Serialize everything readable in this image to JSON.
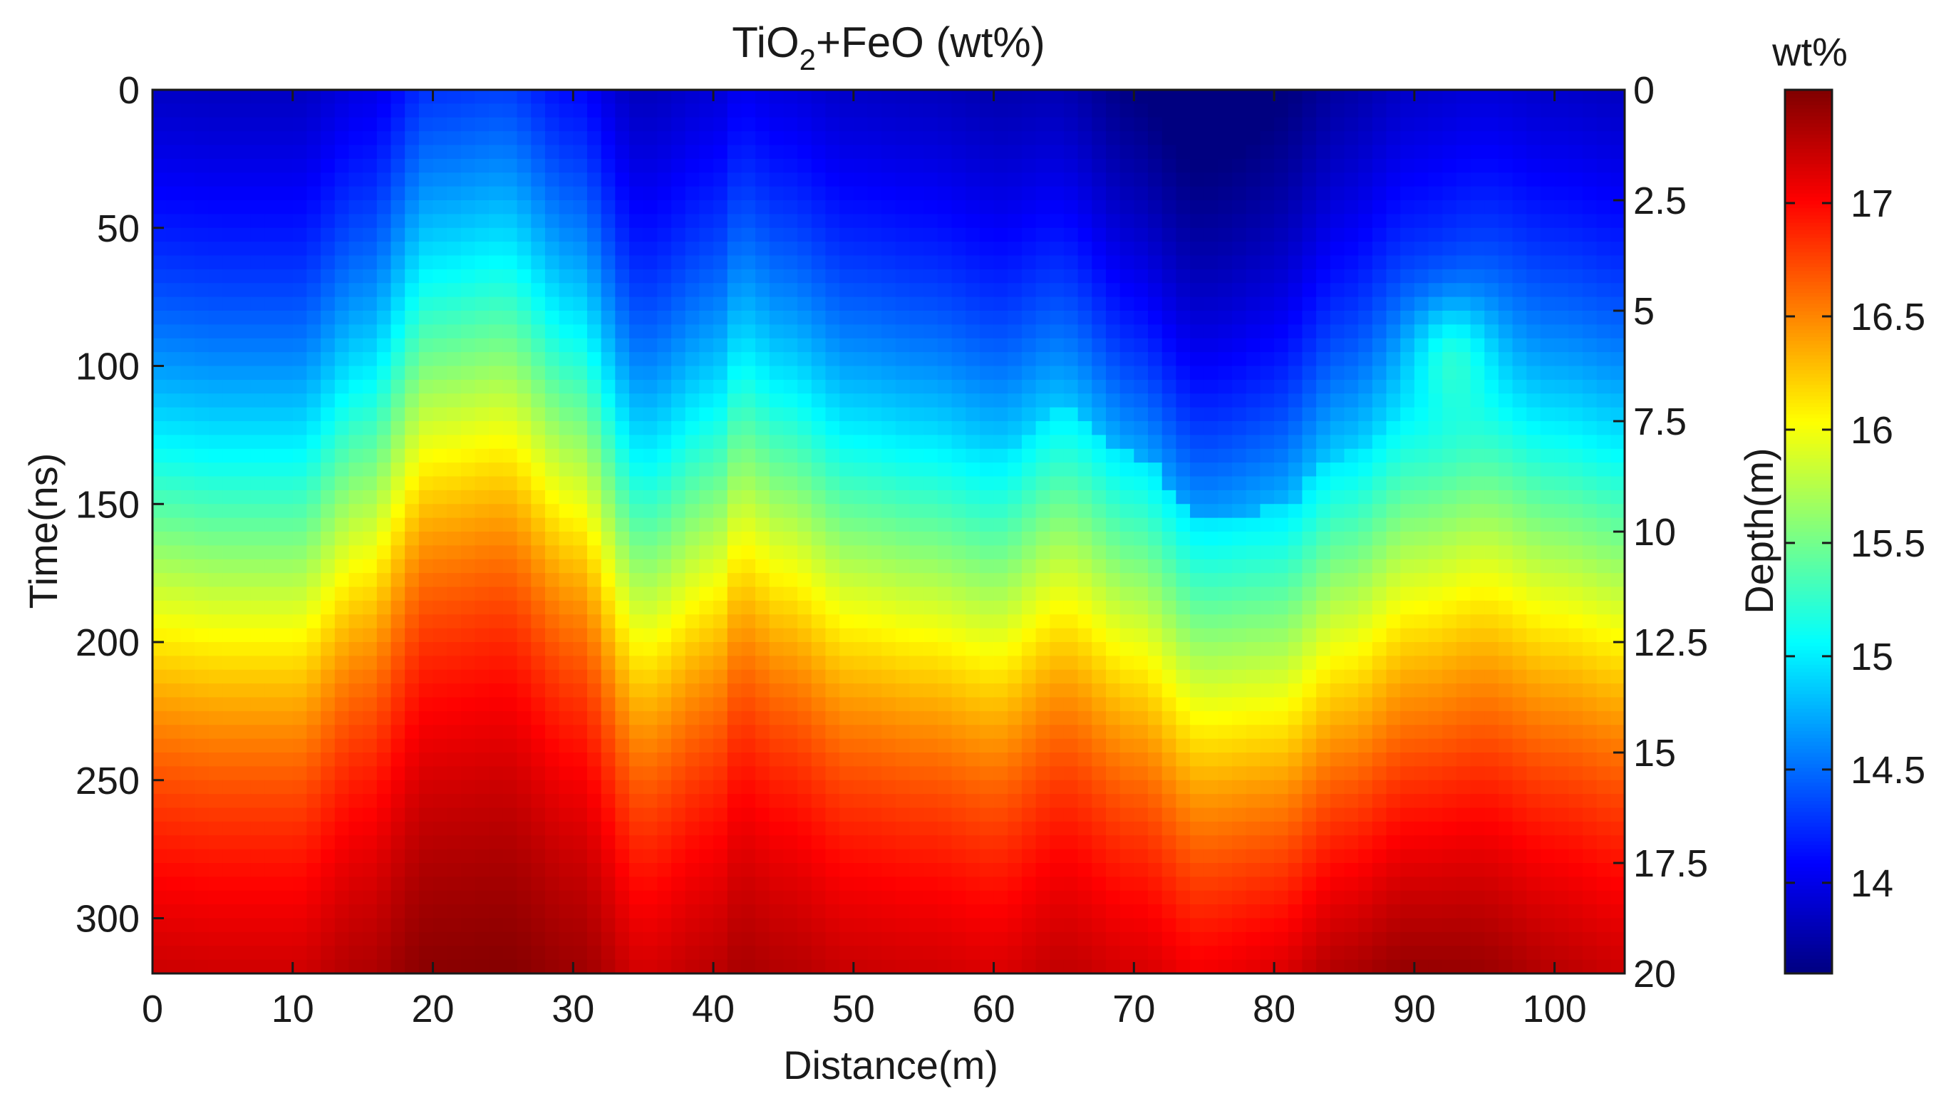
{
  "chart_data": {
    "type": "heatmap",
    "title_main": "TiO",
    "title_sub": "2",
    "title_rest": "+FeO (wt%)",
    "xlabel": "Distance(m)",
    "ylabel": "Time(ns)",
    "ylabel_right": "Depth(m)",
    "colorbar_label": "wt%",
    "xlim": [
      0,
      105
    ],
    "ylim": [
      0,
      320
    ],
    "ylim_right": [
      0,
      20
    ],
    "clim": [
      13.6,
      17.5
    ],
    "x_ticks": [
      0,
      10,
      20,
      30,
      40,
      50,
      60,
      70,
      80,
      90,
      100
    ],
    "x_tick_labels": [
      "0",
      "10",
      "20",
      "30",
      "40",
      "50",
      "60",
      "70",
      "80",
      "90",
      "100"
    ],
    "y_ticks": [
      0,
      50,
      100,
      150,
      200,
      250,
      300
    ],
    "y_tick_labels": [
      "0",
      "50",
      "100",
      "150",
      "200",
      "250",
      "300"
    ],
    "y_right_ticks": [
      0,
      2.5,
      5,
      7.5,
      10,
      12.5,
      15,
      17.5,
      20
    ],
    "y_right_tick_labels": [
      "0",
      "2.5",
      "5",
      "7.5",
      "10",
      "12.5",
      "15",
      "17.5",
      "20"
    ],
    "colorbar_ticks": [
      14,
      14.5,
      15,
      15.5,
      16,
      16.5,
      17
    ],
    "colorbar_tick_labels": [
      "14",
      "14.5",
      "15",
      "15.5",
      "16",
      "16.5",
      "17"
    ],
    "colormap": "jet",
    "boundary_15_5_wt": {
      "x": [
        0,
        5,
        10,
        15,
        20,
        25,
        30,
        35,
        40,
        42,
        45,
        50,
        55,
        60,
        65,
        70,
        75,
        80,
        85,
        90,
        95,
        100,
        105
      ],
      "time_ns": [
        162,
        165,
        165,
        140,
        100,
        95,
        120,
        168,
        150,
        133,
        143,
        160,
        165,
        172,
        155,
        172,
        195,
        192,
        172,
        155,
        148,
        158,
        165
      ]
    },
    "profile_deep_max": {
      "x": 88,
      "time_ns": 310,
      "value": 17.5
    }
  }
}
